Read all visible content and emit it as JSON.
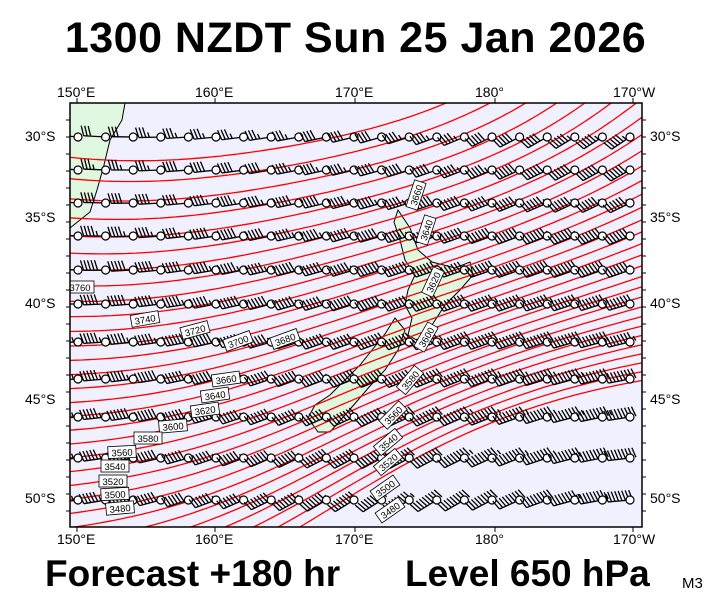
{
  "header": {
    "title": "1300 NZDT Sun 25 Jan 2026"
  },
  "footer": {
    "forecast": "Forecast +180 hr",
    "level": "Level 650 hPa",
    "model": "M3"
  },
  "axes": {
    "longitude_labels": [
      "150°E",
      "160°E",
      "170°E",
      "180°",
      "170°W"
    ],
    "latitude_labels": [
      "30°S",
      "35°S",
      "40°S",
      "45°S",
      "50°S"
    ]
  },
  "map": {
    "ocean_color": "#f0f0ff",
    "land_color": "#e0f8e0",
    "contour_color": "#ff0000",
    "barb_color": "#000000",
    "contour_labels_west": [
      "3760",
      "3740",
      "3720",
      "3700",
      "3680",
      "3660",
      "3640",
      "3620",
      "3600",
      "3580",
      "3560",
      "3540",
      "3520",
      "3500",
      "3480"
    ],
    "contour_labels_nz": [
      "3660",
      "3640",
      "3620",
      "3600",
      "3580",
      "3560",
      "3540",
      "3520",
      "3500",
      "3480"
    ]
  }
}
